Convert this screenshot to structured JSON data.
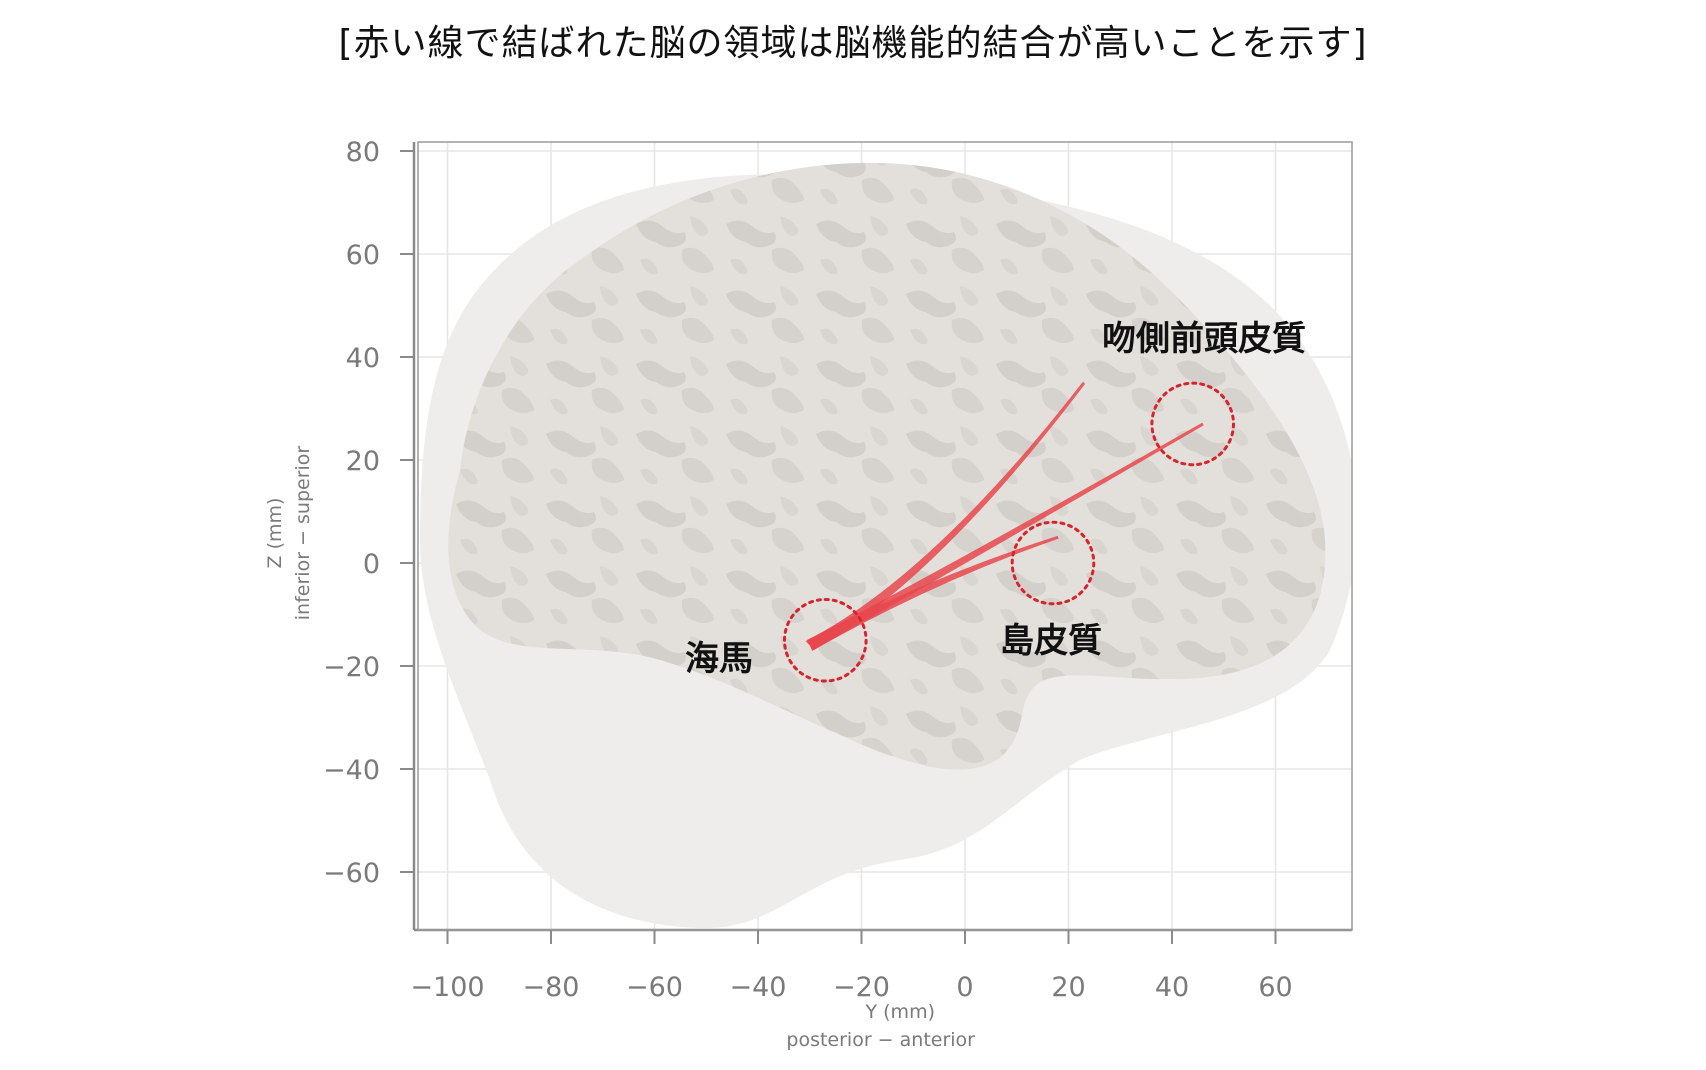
{
  "title": "[赤い線で結ばれた脳の領域は脳機能的結合が高いことを示す]",
  "axes": {
    "x_label_line1": "Y (mm)",
    "x_label_line2": "posterior − anterior",
    "y_label_line1": "Z (mm)",
    "y_label_line2": "inferior − superior",
    "x_ticks": [
      "−100",
      "−80",
      "−60",
      "−40",
      "−20",
      "0",
      "20",
      "40",
      "60"
    ],
    "y_ticks": [
      "80",
      "60",
      "40",
      "20",
      "0",
      "−20",
      "−40",
      "−60"
    ]
  },
  "regions": {
    "hippocampus": "海馬",
    "insula": "島皮質",
    "rostral_prefrontal": "吻側前頭皮質"
  },
  "colors": {
    "connection": "#e8474d",
    "circle": "#d9232a",
    "brain": "#e3e0dc",
    "brain_shadow": "#efedeb",
    "grid": "#e6e6e6",
    "axis": "#8a8a8a"
  },
  "chart_data": {
    "type": "diagram",
    "xlim": [
      -106,
      74
    ],
    "ylim": [
      -70,
      82
    ],
    "x_ticks": [
      -100,
      -80,
      -60,
      -40,
      -20,
      0,
      20,
      40,
      60
    ],
    "y_ticks": [
      80,
      60,
      40,
      20,
      0,
      -20,
      -40,
      -60
    ],
    "grid": true,
    "connections": [
      {
        "from": [
          -30,
          -16
        ],
        "to": [
          23,
          35
        ]
      },
      {
        "from": [
          -30,
          -16
        ],
        "to": [
          46,
          27
        ]
      },
      {
        "from": [
          -30,
          -16
        ],
        "to": [
          18,
          5
        ]
      }
    ],
    "region_circles": [
      {
        "name": "海馬",
        "center": [
          -27,
          -15
        ],
        "radius": 8
      },
      {
        "name": "島皮質",
        "center": [
          17,
          0
        ],
        "radius": 8
      },
      {
        "name": "吻側前頭皮質",
        "center": [
          44,
          27
        ],
        "radius": 8
      }
    ]
  }
}
